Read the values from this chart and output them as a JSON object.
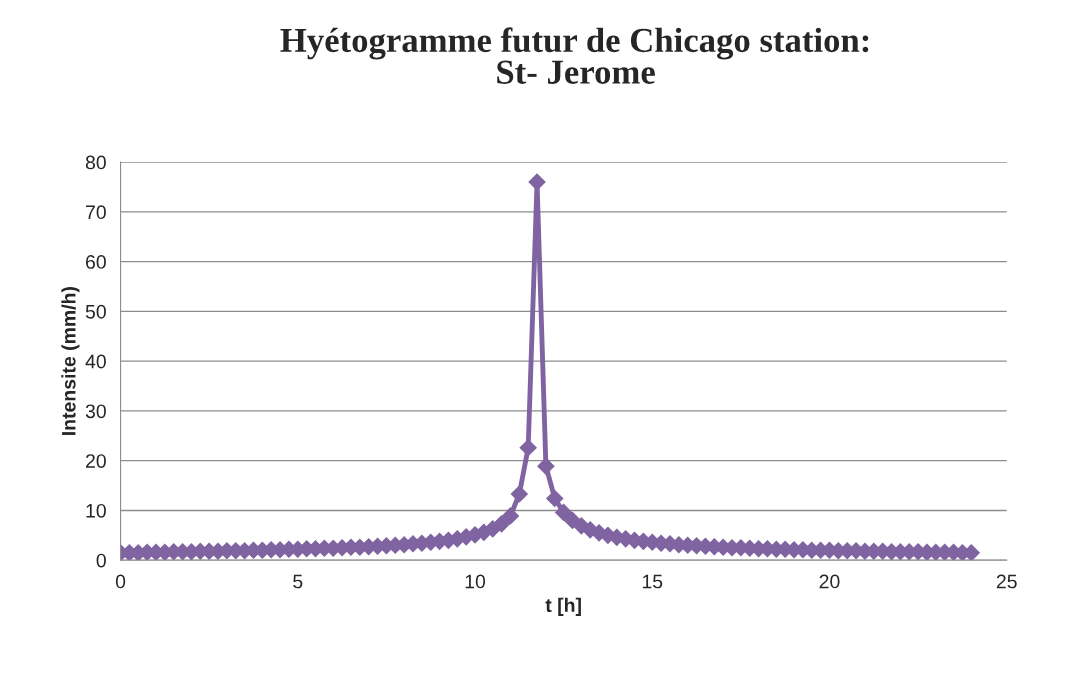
{
  "chart_data": {
    "type": "line",
    "title": "Hyétogramme futur de Chicago station:\nSt- Jerome",
    "xlabel": "t [h]",
    "ylabel": "Intensite (mm/h)",
    "x": [
      0,
      0.25,
      0.5,
      0.75,
      1,
      1.25,
      1.5,
      1.75,
      2,
      2.25,
      2.5,
      2.75,
      3,
      3.25,
      3.5,
      3.75,
      4,
      4.25,
      4.5,
      4.75,
      5,
      5.25,
      5.5,
      5.75,
      6,
      6.25,
      6.5,
      6.75,
      7,
      7.25,
      7.5,
      7.75,
      8,
      8.25,
      8.5,
      8.75,
      9,
      9.25,
      9.5,
      9.75,
      10,
      10.25,
      10.5,
      10.75,
      11,
      11.25,
      11.5,
      11.75,
      12,
      12.25,
      12.5,
      12.75,
      13,
      13.25,
      13.5,
      13.75,
      14,
      14.25,
      14.5,
      14.75,
      15,
      15.25,
      15.5,
      15.75,
      16,
      16.25,
      16.5,
      16.75,
      17,
      17.25,
      17.5,
      17.75,
      18,
      18.25,
      18.5,
      18.75,
      19,
      19.25,
      19.5,
      19.75,
      20,
      20.25,
      20.5,
      20.75,
      21,
      21.25,
      21.5,
      21.75,
      22,
      22.25,
      22.5,
      22.75,
      23,
      23.25,
      23.5,
      23.75,
      24
    ],
    "series": [
      {
        "color": "#8064a2",
        "values": [
          1.5,
          1.5,
          1.5,
          1.6,
          1.6,
          1.6,
          1.7,
          1.7,
          1.7,
          1.8,
          1.8,
          1.8,
          1.9,
          1.9,
          1.9,
          2.0,
          2.0,
          2.1,
          2.1,
          2.2,
          2.2,
          2.3,
          2.3,
          2.4,
          2.4,
          2.5,
          2.6,
          2.6,
          2.7,
          2.8,
          2.9,
          3.0,
          3.1,
          3.3,
          3.4,
          3.6,
          3.8,
          4.0,
          4.3,
          4.7,
          5.1,
          5.6,
          6.3,
          7.3,
          8.9,
          13.3,
          22.6,
          76,
          18.9,
          12.4,
          9.6,
          8.0,
          6.9,
          6.1,
          5.5,
          5.0,
          4.6,
          4.3,
          4.0,
          3.8,
          3.6,
          3.4,
          3.3,
          3.1,
          3.0,
          2.9,
          2.8,
          2.7,
          2.6,
          2.5,
          2.5,
          2.4,
          2.3,
          2.3,
          2.2,
          2.2,
          2.1,
          2.1,
          2.0,
          2.0,
          2.0,
          1.9,
          1.9,
          1.9,
          1.8,
          1.8,
          1.8,
          1.7,
          1.7,
          1.7,
          1.7,
          1.6,
          1.6,
          1.6,
          1.6,
          1.5,
          1.5
        ]
      }
    ],
    "xlim": [
      0,
      25
    ],
    "xticks": [
      0,
      5,
      10,
      15,
      20,
      25
    ],
    "ylim": [
      0,
      80
    ],
    "yticks": [
      0,
      10,
      20,
      30,
      40,
      50,
      60,
      70,
      80
    ],
    "grid": "y",
    "marker": "diamond",
    "line_style": "solid",
    "legend": false
  }
}
